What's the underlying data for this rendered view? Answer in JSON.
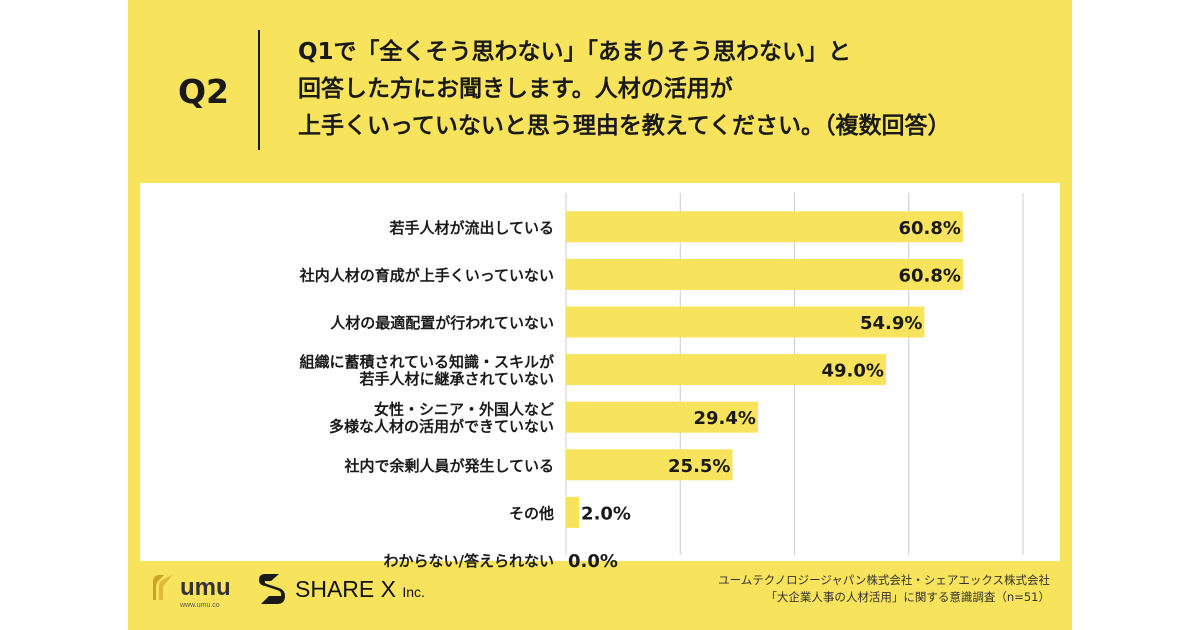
{
  "question": {
    "label": "Q2",
    "lines": [
      "Q1で「全くそう思わない」「あまりそう思わない」と",
      "回答した方にお聞きします。人材の活用が",
      "上手くいっていないと思う理由を教えてください。（複数回答）"
    ]
  },
  "chart_data": {
    "type": "bar",
    "orientation": "horizontal",
    "categories": [
      [
        "若手人材が流出している"
      ],
      [
        "社内人材の育成が上手くいっていない"
      ],
      [
        "人材の最適配置が行われていない"
      ],
      [
        "組織に蓄積されている知識・スキルが",
        "若手人材に継承されていない"
      ],
      [
        "女性・シニア・外国人など",
        "多様な人材の活用ができていない"
      ],
      [
        "社内で余剰人員が発生している"
      ],
      [
        "その他"
      ],
      [
        "わからない/答えられない"
      ]
    ],
    "values": [
      60.8,
      60.8,
      54.9,
      49.0,
      29.4,
      25.5,
      2.0,
      0.0
    ],
    "value_labels": [
      "60.8%",
      "60.8%",
      "54.9%",
      "49.0%",
      "29.4%",
      "25.5%",
      "2.0%",
      "0.0%"
    ],
    "xlim": [
      0,
      70
    ],
    "grid": true,
    "gridlines": [
      0,
      17.5,
      35,
      52.5,
      70
    ],
    "bar_color": "#f7e35c",
    "grid_color": "#cccccc"
  },
  "footer": {
    "umu_logo_text": "umu",
    "umu_url": "www.umu.co",
    "sharex_logo_text": "SHARE X",
    "sharex_inc": "Inc.",
    "source_lines": [
      "ユームテクノロジージャパン株式会社・シェアエックス株式会社",
      "「大企業人事の人材活用」に関する意識調査（n=51）"
    ]
  },
  "colors": {
    "background": "#f7e35c",
    "card": "#ffffff",
    "text": "#1a1a1a"
  }
}
